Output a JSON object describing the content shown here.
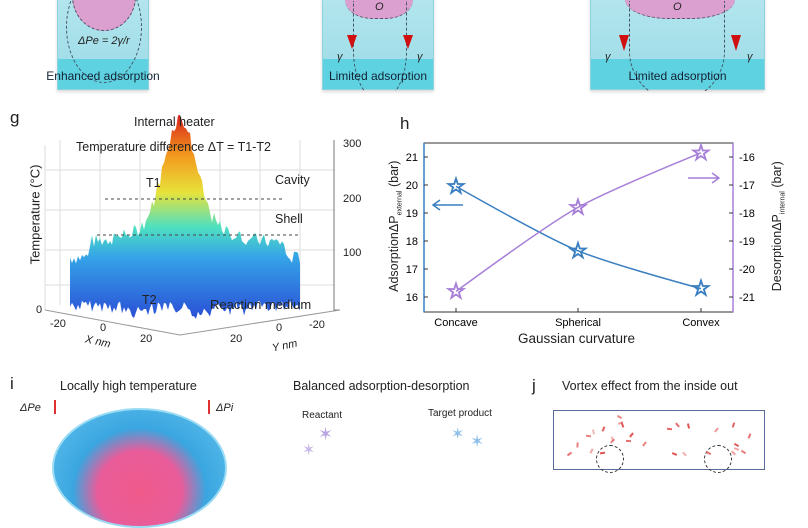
{
  "top_row": {
    "boxes": [
      {
        "label": "Enhanced adsorption",
        "equation": "ΔPe = 2γ/r"
      },
      {
        "label": "Limited adsorption",
        "center": "O",
        "tension": "γ"
      },
      {
        "label": "Limited adsorption",
        "center": "O",
        "tension": "γ"
      }
    ]
  },
  "panel_g": {
    "letter": "g",
    "title": "Internal heater",
    "subtitle": "Temperature difference ΔT = T1-T2",
    "ylabel": "Temperature (°C)",
    "zticks": [
      "300",
      "200",
      "100",
      "0"
    ],
    "labels": {
      "t1": "T1",
      "t2": "T2",
      "cavity": "Cavity",
      "shell": "Shell",
      "medium": "Reaction medium"
    },
    "x_axis": {
      "label": "X nm",
      "ticks": [
        "-20",
        "0",
        "20"
      ]
    },
    "y_axis": {
      "label": "Y nm",
      "ticks": [
        "20",
        "0",
        "-20"
      ]
    },
    "colormap": [
      "#2a4fd6",
      "#35a3e8",
      "#4fe0c0",
      "#e8e23a",
      "#f29a1e",
      "#d8221a"
    ]
  },
  "chart_data": {
    "type": "line",
    "letter": "h",
    "categories": [
      "Concave",
      "Spherical",
      "Convex"
    ],
    "xlabel": "Gaussian curvature",
    "ylabel": "AdsorptionΔP",
    "ylabel_sub": "external",
    "ylabel_unit": "(bar)",
    "y2label": "DesorptionΔP",
    "y2label_sub": "internal",
    "y2label_unit": "(bar)",
    "ylim": [
      15.6,
      21.5
    ],
    "y2lim": [
      -21.4,
      -15.5
    ],
    "yticks": [
      16,
      17,
      18,
      19,
      20,
      21
    ],
    "y2ticks": [
      -21,
      -20,
      -19,
      -18,
      -17,
      -16
    ],
    "grid": false,
    "series": [
      {
        "axis": "left",
        "color": "#3a7fc0",
        "values": [
          19.95,
          17.65,
          16.3
        ]
      },
      {
        "axis": "right",
        "color": "#a77fd8",
        "values": [
          -20.8,
          -17.8,
          -15.85
        ]
      }
    ]
  },
  "panel_i": {
    "letter": "i",
    "title": "Locally high temperature",
    "dpe": "ΔPe",
    "dpi": "ΔPi",
    "subtitle": "Balanced adsorption-desorption",
    "reactant": "Reactant",
    "product": "Target product"
  },
  "panel_j": {
    "letter": "j",
    "title": "Vortex effect from the inside out"
  }
}
